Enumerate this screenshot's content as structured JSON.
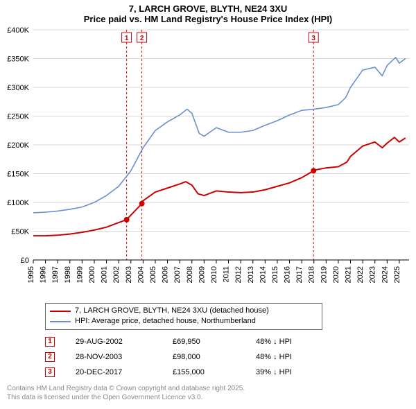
{
  "title1": "7, LARCH GROVE, BLYTH, NE24 3XU",
  "title2": "Price paid vs. HM Land Registry's House Price Index (HPI)",
  "chart": {
    "type": "line",
    "xlim": [
      1995,
      2025.8
    ],
    "ylim": [
      0,
      400000
    ],
    "ytick_step": 50000,
    "yticks": [
      "£0",
      "£50K",
      "£100K",
      "£150K",
      "£200K",
      "£250K",
      "£300K",
      "£350K",
      "£400K"
    ],
    "xticks": [
      1995,
      1996,
      1997,
      1998,
      1999,
      2000,
      2001,
      2002,
      2003,
      2004,
      2005,
      2006,
      2007,
      2008,
      2009,
      2010,
      2011,
      2012,
      2013,
      2014,
      2015,
      2016,
      2017,
      2018,
      2019,
      2020,
      2021,
      2022,
      2023,
      2024,
      2025
    ],
    "background_color": "#ffffff",
    "grid_color": "#d9d9d9",
    "series": [
      {
        "name": "7, LARCH GROVE, BLYTH, NE24 3XU (detached house)",
        "color": "#cc0000",
        "width": 2,
        "data": [
          [
            1995,
            42000
          ],
          [
            1996,
            42000
          ],
          [
            1997,
            43000
          ],
          [
            1998,
            45000
          ],
          [
            1999,
            48000
          ],
          [
            2000,
            52000
          ],
          [
            2001,
            57000
          ],
          [
            2002,
            65000
          ],
          [
            2002.65,
            69950
          ],
          [
            2003,
            78000
          ],
          [
            2003.9,
            98000
          ],
          [
            2004,
            103000
          ],
          [
            2005,
            118000
          ],
          [
            2006,
            125000
          ],
          [
            2007,
            132000
          ],
          [
            2007.5,
            136000
          ],
          [
            2008,
            130000
          ],
          [
            2008.5,
            115000
          ],
          [
            2009,
            112000
          ],
          [
            2010,
            120000
          ],
          [
            2011,
            118000
          ],
          [
            2012,
            117000
          ],
          [
            2013,
            118000
          ],
          [
            2014,
            122000
          ],
          [
            2015,
            128000
          ],
          [
            2016,
            134000
          ],
          [
            2017,
            143000
          ],
          [
            2017.97,
            155000
          ],
          [
            2018,
            156000
          ],
          [
            2019,
            160000
          ],
          [
            2020,
            162000
          ],
          [
            2020.7,
            170000
          ],
          [
            2021,
            180000
          ],
          [
            2022,
            198000
          ],
          [
            2023,
            205000
          ],
          [
            2023.6,
            195000
          ],
          [
            2024,
            203000
          ],
          [
            2024.6,
            213000
          ],
          [
            2025,
            205000
          ],
          [
            2025.5,
            212000
          ]
        ]
      },
      {
        "name": "HPI: Average price, detached house, Northumberland",
        "color": "#6a8fd0",
        "width": 1.6,
        "data": [
          [
            1995,
            82000
          ],
          [
            1996,
            83000
          ],
          [
            1997,
            85000
          ],
          [
            1998,
            88000
          ],
          [
            1999,
            92000
          ],
          [
            2000,
            100000
          ],
          [
            2001,
            112000
          ],
          [
            2002,
            128000
          ],
          [
            2003,
            155000
          ],
          [
            2004,
            195000
          ],
          [
            2005,
            225000
          ],
          [
            2006,
            240000
          ],
          [
            2007,
            252000
          ],
          [
            2007.6,
            262000
          ],
          [
            2008,
            255000
          ],
          [
            2008.6,
            220000
          ],
          [
            2009,
            215000
          ],
          [
            2010,
            230000
          ],
          [
            2011,
            222000
          ],
          [
            2012,
            222000
          ],
          [
            2013,
            225000
          ],
          [
            2014,
            234000
          ],
          [
            2015,
            242000
          ],
          [
            2016,
            252000
          ],
          [
            2017,
            260000
          ],
          [
            2018,
            262000
          ],
          [
            2019,
            265000
          ],
          [
            2020,
            270000
          ],
          [
            2020.6,
            282000
          ],
          [
            2021,
            300000
          ],
          [
            2022,
            330000
          ],
          [
            2023,
            335000
          ],
          [
            2023.6,
            320000
          ],
          [
            2024,
            338000
          ],
          [
            2024.7,
            352000
          ],
          [
            2025,
            342000
          ],
          [
            2025.5,
            350000
          ]
        ]
      }
    ],
    "markers": [
      {
        "n": "1",
        "x": 2002.65,
        "y": 69950,
        "date": "29-AUG-2002",
        "price": "£69,950",
        "delta": "48% ↓ HPI",
        "color": "#cc0000"
      },
      {
        "n": "2",
        "x": 2003.9,
        "y": 98000,
        "date": "28-NOV-2003",
        "price": "£98,000",
        "delta": "48% ↓ HPI",
        "color": "#cc0000"
      },
      {
        "n": "3",
        "x": 2017.97,
        "y": 155000,
        "date": "20-DEC-2017",
        "price": "£155,000",
        "delta": "39% ↓ HPI",
        "color": "#cc0000"
      }
    ]
  },
  "legend": {
    "s1": "7, LARCH GROVE, BLYTH, NE24 3XU (detached house)",
    "s2": "HPI: Average price, detached house, Northumberland"
  },
  "footer1": "Contains HM Land Registry data © Crown copyright and database right 2025.",
  "footer2": "This data is licensed under the Open Government Licence v3.0."
}
